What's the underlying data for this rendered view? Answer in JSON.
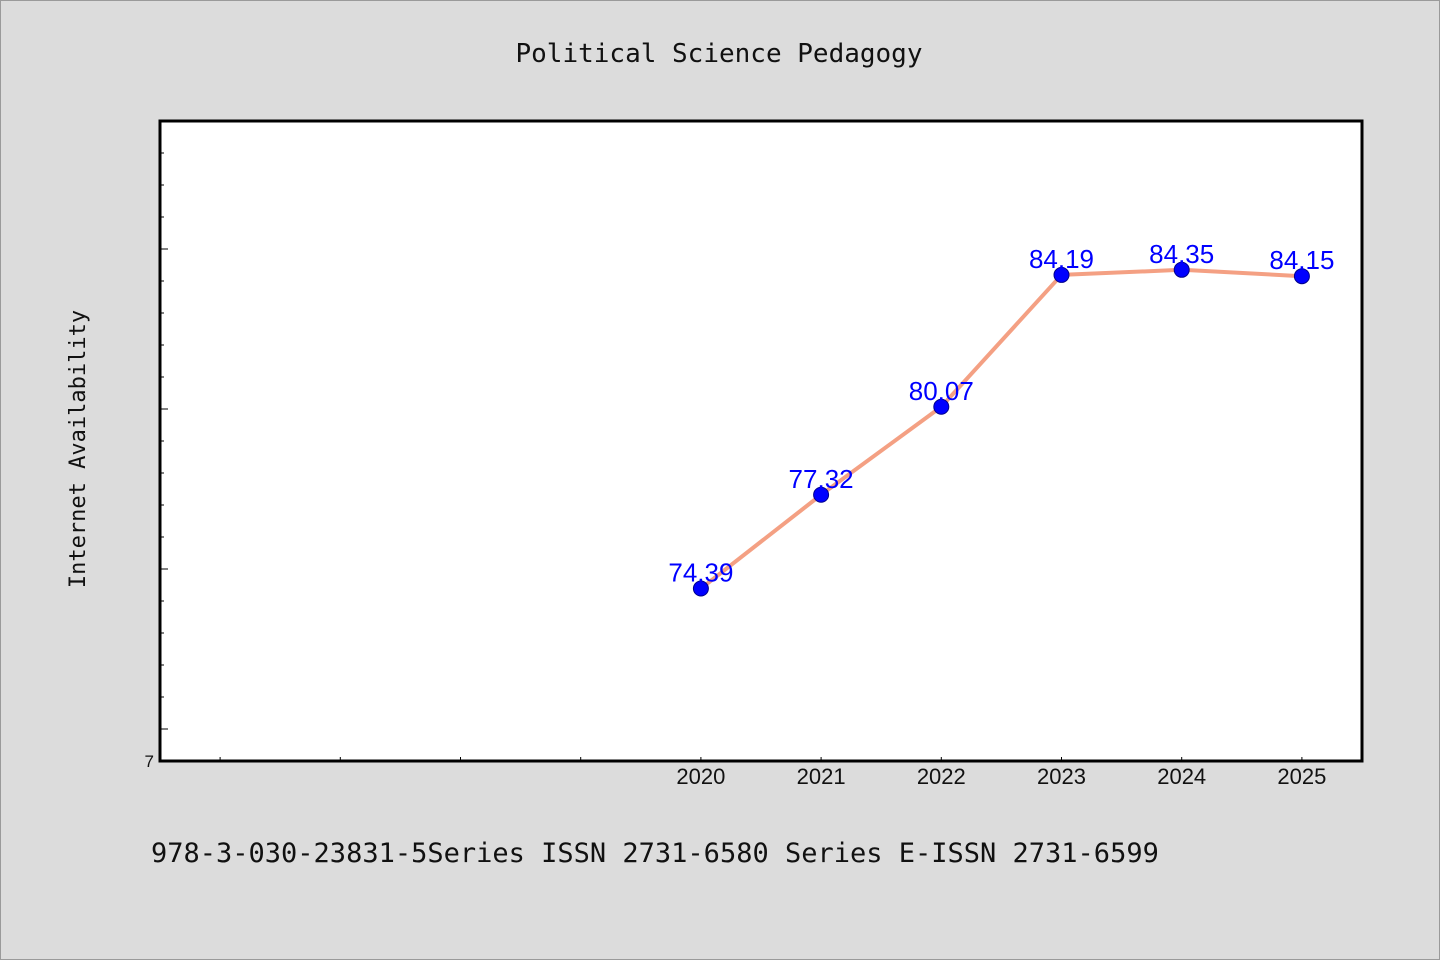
{
  "chart_data": {
    "type": "line",
    "title": "Political Science Pedagogy",
    "ylabel": "Internet Availability",
    "xlabel": "",
    "x": [
      "2020",
      "2021",
      "2022",
      "2023",
      "2024",
      "2025"
    ],
    "x_slots": [
      "",
      "",
      "",
      "",
      "2020",
      "2021",
      "2022",
      "2023",
      "2024",
      "2025"
    ],
    "series": [
      {
        "values": [
          74.39,
          77.32,
          80.07,
          84.19,
          84.35,
          84.15
        ]
      }
    ],
    "data_labels": [
      "74.39",
      "77.32",
      "80.07",
      "84.19",
      "84.35",
      "84.15"
    ],
    "y_tick_label": "7",
    "ylim": [
      69,
      89
    ],
    "grid": false,
    "line_color": "#f4a083",
    "marker_color": "#0000ff",
    "label_color": "#0000ff",
    "background": "#dcdcdc",
    "plot_background": "#ffffff"
  },
  "footer": {
    "text": "978-3-030-23831-5Series ISSN 2731-6580 Series E-ISSN 2731-6599"
  }
}
